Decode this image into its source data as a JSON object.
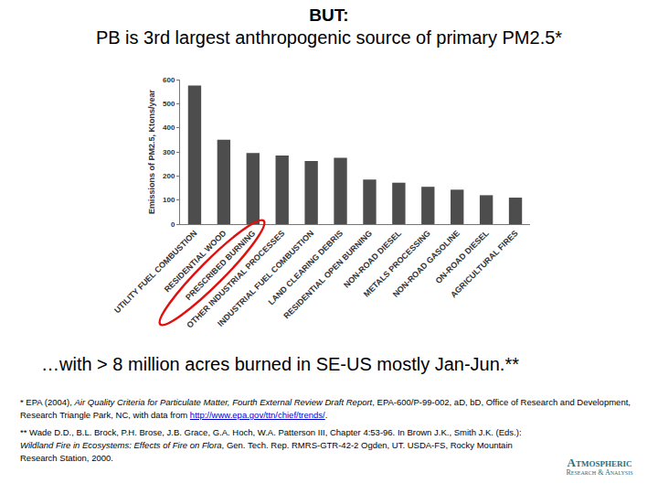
{
  "chart_data": {
    "type": "bar",
    "title": "BUT:",
    "subtitle": "PB is 3rd largest anthropogenic source of primary PM2.5*",
    "y_label": "Emissions of PM2.5, Ktons/year",
    "categories": [
      "UTILITY FUEL COMBUSTION",
      "RESIDENTIAL WOOD",
      "PRESCRIBED BURNING",
      "OTHER INDUSTRIAL PROCESSES",
      "INDUSTRIAL FUEL COMBUSTION",
      "LAND CLEARING DEBRIS",
      "RESIDENTIAL OPEN BURNING",
      "NON-ROAD DIESEL",
      "METALS PROCESSING",
      "NON-ROAD GASOLINE",
      "ON-ROAD DIESEL",
      "AGRICULTURAL FIRES"
    ],
    "values": [
      575,
      350,
      295,
      285,
      262,
      275,
      185,
      172,
      155,
      143,
      120,
      110
    ],
    "color": "#4d4d4d",
    "ylim": [
      0,
      600
    ],
    "yticks": [
      0,
      100,
      200,
      300,
      400,
      500,
      600
    ],
    "grid": false
  },
  "caption": "…with > 8 million acres burned in SE-US mostly Jan-Jun.**",
  "footnotes": [
    [
      {
        "text": "* EPA (2004), "
      },
      {
        "text": "Air Quality Criteria for Particulate Matter, Fourth External Review Draft Report",
        "italic": true
      },
      {
        "text": ", EPA-600/P-99-002, aD, bD, Office of Research and Development, Research Triangle Park, NC, with data from "
      },
      {
        "text": "http://www.epa.gov/ttn/chief/trends/",
        "link": true
      },
      {
        "text": "."
      }
    ],
    [
      {
        "text": "** Wade D.D., B.L. Brock, P.H. Brose, J.B. Grace, G.A. Hoch, W.A. Patterson III, Chapter 4:53-96. In Brown J.K., Smith J.K. (Eds.): "
      },
      {
        "text": "Wildland Fire in Ecosystems: Effects of Fire on Flora",
        "italic": true
      },
      {
        "text": ", Gen. Tech. Rep. RMRS-GTR-42-2 Ogden, UT. USDA-FS, Rocky Mountain Research Station, 2000."
      }
    ]
  ],
  "logo": [
    "Atmospheric",
    "Research & Analysis"
  ]
}
